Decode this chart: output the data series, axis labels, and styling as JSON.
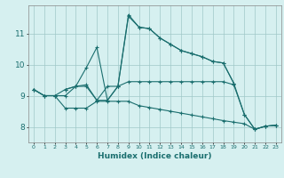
{
  "xlabel": "Humidex (Indice chaleur)",
  "bg_color": "#d6f0f0",
  "grid_color": "#a0c8c8",
  "line_color": "#1a6e6e",
  "xlim": [
    -0.5,
    23.5
  ],
  "ylim": [
    7.5,
    11.9
  ],
  "xticks": [
    0,
    1,
    2,
    3,
    4,
    5,
    6,
    7,
    8,
    9,
    10,
    11,
    12,
    13,
    14,
    15,
    16,
    17,
    18,
    19,
    20,
    21,
    22,
    23
  ],
  "yticks": [
    8,
    9,
    10,
    11
  ],
  "line1_x": [
    0,
    1,
    2,
    3,
    4,
    5,
    6,
    7,
    8,
    9,
    10,
    11,
    12,
    13,
    14,
    15,
    16,
    17,
    18,
    19,
    20,
    21,
    22,
    23
  ],
  "line1_y": [
    9.2,
    9.0,
    9.0,
    9.2,
    9.3,
    9.35,
    8.85,
    8.85,
    9.3,
    11.55,
    11.2,
    11.15,
    10.85,
    10.65,
    10.45,
    10.35,
    10.25,
    10.1,
    10.05,
    9.4,
    8.4,
    7.92,
    8.02,
    8.05
  ],
  "line2_x": [
    0,
    1,
    2,
    3,
    4,
    5,
    6,
    7,
    8,
    9,
    10,
    11,
    12,
    13,
    14,
    15,
    16,
    17,
    18,
    19,
    20,
    21,
    22,
    23
  ],
  "line2_y": [
    9.2,
    9.0,
    9.0,
    9.0,
    9.3,
    9.3,
    8.85,
    9.3,
    9.3,
    9.45,
    9.45,
    9.45,
    9.45,
    9.45,
    9.45,
    9.45,
    9.45,
    9.45,
    9.45,
    9.35,
    8.4,
    7.92,
    8.02,
    8.05
  ],
  "line3_x": [
    0,
    1,
    2,
    3,
    4,
    5,
    6,
    7,
    8,
    9,
    10,
    11,
    12,
    13,
    14,
    15,
    16,
    17,
    18,
    19,
    20,
    21,
    22,
    23
  ],
  "line3_y": [
    9.2,
    9.0,
    9.0,
    8.6,
    8.6,
    8.6,
    8.82,
    8.82,
    8.82,
    8.82,
    8.68,
    8.62,
    8.56,
    8.5,
    8.44,
    8.38,
    8.32,
    8.26,
    8.2,
    8.15,
    8.1,
    7.92,
    8.02,
    8.05
  ],
  "line4_x": [
    3,
    4,
    5,
    6,
    7,
    8,
    9,
    10,
    11,
    12,
    13,
    14,
    15,
    16,
    17,
    18,
    19
  ],
  "line4_y": [
    9.2,
    9.3,
    9.9,
    10.55,
    8.85,
    9.3,
    11.6,
    11.2,
    11.15,
    10.85,
    10.65,
    10.45,
    10.35,
    10.25,
    10.1,
    10.05,
    9.4
  ]
}
